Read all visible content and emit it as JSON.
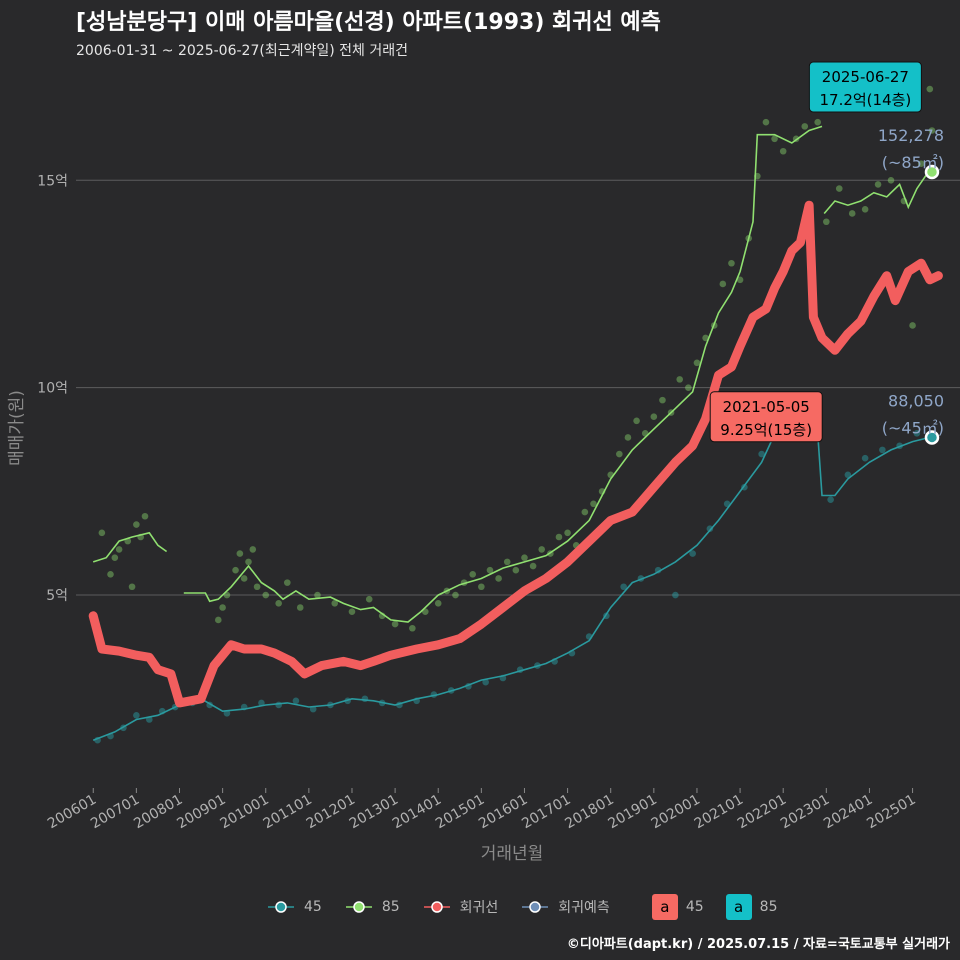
{
  "chart_data": {
    "type": "line",
    "title": "[성남분당구] 이매 아름마을(선경) 아파트(1993) 회귀선 예측",
    "subtitle": "2006-01-31 ~ 2025-06-27(최근계약일) 전체 거래건",
    "xlabel": "거래년월",
    "ylabel": "매매가(원)",
    "x_ticks": [
      "200601",
      "200701",
      "200801",
      "200901",
      "201001",
      "201101",
      "201201",
      "201301",
      "201401",
      "201501",
      "201601",
      "201701",
      "201801",
      "201901",
      "202001",
      "202101",
      "202201",
      "202301",
      "202401",
      "202501"
    ],
    "y_ticks": [
      {
        "value": 5,
        "label": "5억"
      },
      {
        "value": 10,
        "label": "10억"
      },
      {
        "value": 15,
        "label": "15억"
      }
    ],
    "xlim": [
      2005.6,
      2026.1
    ],
    "ylim": [
      0.3,
      17.9
    ],
    "grid": true,
    "legend_position": "bottom",
    "series": [
      {
        "name": "45",
        "color": "#2a9a9f",
        "points": [
          [
            2006.0,
            1.5
          ],
          [
            2006.5,
            1.7
          ],
          [
            2007.0,
            2.0
          ],
          [
            2007.5,
            2.1
          ],
          [
            2008.0,
            2.35
          ],
          [
            2008.5,
            2.5
          ],
          [
            2009.0,
            2.2
          ],
          [
            2009.5,
            2.25
          ],
          [
            2010.0,
            2.35
          ],
          [
            2010.5,
            2.4
          ],
          [
            2011.0,
            2.3
          ],
          [
            2011.5,
            2.35
          ],
          [
            2012.0,
            2.5
          ],
          [
            2012.5,
            2.45
          ],
          [
            2013.0,
            2.35
          ],
          [
            2013.5,
            2.5
          ],
          [
            2014.0,
            2.6
          ],
          [
            2014.5,
            2.75
          ],
          [
            2015.0,
            2.95
          ],
          [
            2015.5,
            3.05
          ],
          [
            2016.0,
            3.2
          ],
          [
            2016.5,
            3.35
          ],
          [
            2017.0,
            3.6
          ],
          [
            2017.5,
            3.9
          ],
          [
            2018.0,
            4.7
          ],
          [
            2018.5,
            5.3
          ],
          [
            2019.0,
            5.5
          ],
          [
            2019.5,
            5.8
          ],
          [
            2020.0,
            6.2
          ],
          [
            2020.5,
            6.8
          ],
          [
            2021.0,
            7.5
          ],
          [
            2021.5,
            8.2
          ],
          [
            2021.9,
            9.1
          ],
          [
            2022.1,
            8.9
          ],
          [
            2022.5,
            8.85
          ],
          [
            2022.8,
            8.9
          ],
          [
            2022.9,
            7.4
          ],
          [
            2023.2,
            7.4
          ],
          [
            2023.5,
            7.8
          ],
          [
            2024.0,
            8.2
          ],
          [
            2024.5,
            8.5
          ],
          [
            2025.0,
            8.7
          ],
          [
            2025.4,
            8.8
          ]
        ]
      },
      {
        "name": "85",
        "color": "#90e070",
        "segments": [
          [
            [
              2006.0,
              5.8
            ],
            [
              2006.3,
              5.9
            ],
            [
              2006.6,
              6.3
            ],
            [
              2006.9,
              6.4
            ],
            [
              2007.3,
              6.5
            ],
            [
              2007.5,
              6.2
            ],
            [
              2007.7,
              6.05
            ]
          ],
          [
            [
              2008.1,
              5.05
            ],
            [
              2008.6,
              5.05
            ],
            [
              2008.7,
              4.85
            ],
            [
              2008.9,
              4.9
            ],
            [
              2009.2,
              5.2
            ],
            [
              2009.6,
              5.7
            ],
            [
              2009.9,
              5.3
            ],
            [
              2010.2,
              5.1
            ],
            [
              2010.4,
              4.9
            ],
            [
              2010.7,
              5.1
            ],
            [
              2011.0,
              4.9
            ],
            [
              2011.5,
              4.95
            ],
            [
              2011.8,
              4.8
            ],
            [
              2012.2,
              4.65
            ],
            [
              2012.5,
              4.7
            ],
            [
              2012.9,
              4.4
            ],
            [
              2013.3,
              4.35
            ],
            [
              2013.6,
              4.6
            ],
            [
              2014.0,
              5.0
            ],
            [
              2014.5,
              5.25
            ],
            [
              2015.0,
              5.4
            ],
            [
              2015.5,
              5.65
            ],
            [
              2016.0,
              5.8
            ],
            [
              2016.5,
              5.95
            ],
            [
              2017.0,
              6.3
            ],
            [
              2017.5,
              6.8
            ],
            [
              2018.0,
              7.8
            ],
            [
              2018.5,
              8.5
            ],
            [
              2019.0,
              9.0
            ],
            [
              2019.5,
              9.5
            ],
            [
              2019.9,
              9.9
            ],
            [
              2020.2,
              11.0
            ],
            [
              2020.5,
              11.8
            ],
            [
              2020.8,
              12.3
            ],
            [
              2021.0,
              12.8
            ],
            [
              2021.3,
              14.0
            ],
            [
              2021.4,
              16.1
            ],
            [
              2021.8,
              16.1
            ],
            [
              2022.2,
              15.9
            ],
            [
              2022.6,
              16.2
            ],
            [
              2022.9,
              16.3
            ]
          ],
          [
            [
              2022.95,
              14.2
            ],
            [
              2023.2,
              14.5
            ],
            [
              2023.5,
              14.4
            ],
            [
              2023.8,
              14.5
            ],
            [
              2024.1,
              14.7
            ],
            [
              2024.4,
              14.6
            ],
            [
              2024.7,
              14.9
            ],
            [
              2024.9,
              14.35
            ],
            [
              2025.1,
              14.8
            ],
            [
              2025.3,
              15.1
            ],
            [
              2025.45,
              15.2
            ]
          ]
        ]
      },
      {
        "name": "회귀선",
        "color": "#f25e5e",
        "points": [
          [
            2006.0,
            4.5
          ],
          [
            2006.2,
            3.7
          ],
          [
            2006.6,
            3.65
          ],
          [
            2007.0,
            3.55
          ],
          [
            2007.3,
            3.5
          ],
          [
            2007.5,
            3.2
          ],
          [
            2007.8,
            3.1
          ],
          [
            2008.0,
            2.4
          ],
          [
            2008.5,
            2.5
          ],
          [
            2008.8,
            3.3
          ],
          [
            2009.2,
            3.8
          ],
          [
            2009.5,
            3.7
          ],
          [
            2009.9,
            3.7
          ],
          [
            2010.2,
            3.6
          ],
          [
            2010.6,
            3.4
          ],
          [
            2010.9,
            3.1
          ],
          [
            2011.3,
            3.3
          ],
          [
            2011.8,
            3.4
          ],
          [
            2012.2,
            3.3
          ],
          [
            2012.5,
            3.4
          ],
          [
            2012.9,
            3.55
          ],
          [
            2013.5,
            3.7
          ],
          [
            2014.0,
            3.8
          ],
          [
            2014.5,
            3.95
          ],
          [
            2015.0,
            4.3
          ],
          [
            2015.5,
            4.7
          ],
          [
            2016.0,
            5.1
          ],
          [
            2016.5,
            5.4
          ],
          [
            2017.0,
            5.8
          ],
          [
            2017.5,
            6.3
          ],
          [
            2018.0,
            6.8
          ],
          [
            2018.5,
            7.0
          ],
          [
            2019.0,
            7.6
          ],
          [
            2019.5,
            8.2
          ],
          [
            2019.9,
            8.6
          ],
          [
            2020.2,
            9.25
          ],
          [
            2020.5,
            10.3
          ],
          [
            2020.8,
            10.5
          ],
          [
            2021.0,
            11.0
          ],
          [
            2021.3,
            11.7
          ],
          [
            2021.6,
            11.9
          ],
          [
            2021.8,
            12.4
          ],
          [
            2022.0,
            12.8
          ],
          [
            2022.2,
            13.3
          ],
          [
            2022.4,
            13.5
          ],
          [
            2022.6,
            14.4
          ],
          [
            2022.7,
            11.7
          ],
          [
            2022.9,
            11.2
          ],
          [
            2023.2,
            10.9
          ],
          [
            2023.5,
            11.3
          ],
          [
            2023.8,
            11.6
          ],
          [
            2024.1,
            12.2
          ],
          [
            2024.4,
            12.7
          ],
          [
            2024.6,
            12.1
          ],
          [
            2024.9,
            12.8
          ],
          [
            2025.2,
            13.0
          ],
          [
            2025.4,
            12.6
          ],
          [
            2025.6,
            12.7
          ]
        ]
      }
    ],
    "scatter_85": [
      [
        2006.2,
        6.5
      ],
      [
        2006.4,
        5.5
      ],
      [
        2006.6,
        6.1
      ],
      [
        2006.8,
        6.3
      ],
      [
        2007.0,
        6.7
      ],
      [
        2007.1,
        6.4
      ],
      [
        2007.2,
        6.9
      ],
      [
        2006.5,
        5.9
      ],
      [
        2006.9,
        5.2
      ],
      [
        2008.9,
        4.4
      ],
      [
        2009.0,
        4.7
      ],
      [
        2009.1,
        5.0
      ],
      [
        2009.3,
        5.6
      ],
      [
        2009.4,
        6.0
      ],
      [
        2009.5,
        5.4
      ],
      [
        2009.6,
        5.8
      ],
      [
        2009.7,
        6.1
      ],
      [
        2009.8,
        5.2
      ],
      [
        2010.0,
        5.0
      ],
      [
        2010.3,
        4.8
      ],
      [
        2010.5,
        5.3
      ],
      [
        2010.8,
        4.7
      ],
      [
        2011.2,
        5.0
      ],
      [
        2011.6,
        4.8
      ],
      [
        2012.0,
        4.6
      ],
      [
        2012.4,
        4.9
      ],
      [
        2012.7,
        4.5
      ],
      [
        2013.0,
        4.3
      ],
      [
        2013.4,
        4.2
      ],
      [
        2013.7,
        4.6
      ],
      [
        2014.0,
        4.8
      ],
      [
        2014.2,
        5.1
      ],
      [
        2014.4,
        5.0
      ],
      [
        2014.6,
        5.3
      ],
      [
        2014.8,
        5.5
      ],
      [
        2015.0,
        5.2
      ],
      [
        2015.2,
        5.6
      ],
      [
        2015.4,
        5.4
      ],
      [
        2015.6,
        5.8
      ],
      [
        2015.8,
        5.6
      ],
      [
        2016.0,
        5.9
      ],
      [
        2016.2,
        5.7
      ],
      [
        2016.4,
        6.1
      ],
      [
        2016.6,
        6.0
      ],
      [
        2016.8,
        6.4
      ],
      [
        2017.0,
        6.5
      ],
      [
        2017.2,
        6.2
      ],
      [
        2017.4,
        7.0
      ],
      [
        2017.6,
        7.2
      ],
      [
        2017.8,
        7.5
      ],
      [
        2018.0,
        7.9
      ],
      [
        2018.2,
        8.4
      ],
      [
        2018.4,
        8.8
      ],
      [
        2018.6,
        9.2
      ],
      [
        2018.8,
        8.9
      ],
      [
        2019.0,
        9.3
      ],
      [
        2019.2,
        9.7
      ],
      [
        2019.4,
        9.4
      ],
      [
        2019.6,
        10.2
      ],
      [
        2019.8,
        10.0
      ],
      [
        2020.0,
        10.6
      ],
      [
        2020.2,
        11.2
      ],
      [
        2020.4,
        11.5
      ],
      [
        2020.6,
        12.5
      ],
      [
        2020.8,
        13.0
      ],
      [
        2021.0,
        12.6
      ],
      [
        2021.2,
        13.6
      ],
      [
        2021.4,
        15.1
      ],
      [
        2021.6,
        16.4
      ],
      [
        2021.8,
        16.0
      ],
      [
        2022.0,
        15.7
      ],
      [
        2022.3,
        16.0
      ],
      [
        2022.5,
        16.3
      ],
      [
        2022.8,
        16.4
      ],
      [
        2023.0,
        14.0
      ],
      [
        2023.3,
        14.8
      ],
      [
        2023.6,
        14.2
      ],
      [
        2023.9,
        14.3
      ],
      [
        2024.2,
        14.9
      ],
      [
        2024.5,
        15.0
      ],
      [
        2024.8,
        14.5
      ],
      [
        2025.0,
        11.5
      ],
      [
        2025.2,
        15.4
      ],
      [
        2025.4,
        17.2
      ],
      [
        2025.45,
        16.2
      ]
    ],
    "scatter_45": [
      [
        2006.1,
        1.5
      ],
      [
        2006.4,
        1.6
      ],
      [
        2006.7,
        1.8
      ],
      [
        2007.0,
        2.1
      ],
      [
        2007.3,
        2.0
      ],
      [
        2007.6,
        2.2
      ],
      [
        2007.9,
        2.3
      ],
      [
        2008.3,
        2.4
      ],
      [
        2008.7,
        2.35
      ],
      [
        2009.1,
        2.15
      ],
      [
        2009.5,
        2.3
      ],
      [
        2009.9,
        2.4
      ],
      [
        2010.3,
        2.35
      ],
      [
        2010.7,
        2.45
      ],
      [
        2011.1,
        2.25
      ],
      [
        2011.5,
        2.35
      ],
      [
        2011.9,
        2.45
      ],
      [
        2012.3,
        2.5
      ],
      [
        2012.7,
        2.4
      ],
      [
        2013.1,
        2.35
      ],
      [
        2013.5,
        2.45
      ],
      [
        2013.9,
        2.6
      ],
      [
        2014.3,
        2.7
      ],
      [
        2014.7,
        2.8
      ],
      [
        2015.1,
        2.9
      ],
      [
        2015.5,
        3.0
      ],
      [
        2015.9,
        3.2
      ],
      [
        2016.3,
        3.3
      ],
      [
        2016.7,
        3.4
      ],
      [
        2017.1,
        3.6
      ],
      [
        2017.5,
        4.0
      ],
      [
        2017.9,
        4.5
      ],
      [
        2018.3,
        5.2
      ],
      [
        2018.7,
        5.4
      ],
      [
        2019.1,
        5.6
      ],
      [
        2019.5,
        5.0
      ],
      [
        2019.9,
        6.0
      ],
      [
        2020.3,
        6.6
      ],
      [
        2020.7,
        7.2
      ],
      [
        2021.1,
        7.6
      ],
      [
        2021.5,
        8.4
      ],
      [
        2021.9,
        9.0
      ],
      [
        2022.3,
        8.8
      ],
      [
        2022.7,
        8.9
      ],
      [
        2023.1,
        7.3
      ],
      [
        2023.5,
        7.9
      ],
      [
        2023.9,
        8.3
      ],
      [
        2024.3,
        8.5
      ],
      [
        2024.7,
        8.6
      ],
      [
        2025.1,
        8.9
      ]
    ],
    "annotations": [
      {
        "date": "2021-05-05",
        "label": "9.25억(15층)",
        "x": 2020.4,
        "y": 9.25,
        "color": "#f66a63"
      },
      {
        "date": "2025-06-27",
        "label": "17.2억(14층)",
        "x": 2022.7,
        "y": 17.2,
        "color": "#14c0c8"
      }
    ],
    "end_labels": [
      {
        "value": "152,278",
        "unit": "(~85㎡)",
        "x": 2025.45,
        "y": 15.2,
        "color": "#90e070"
      },
      {
        "value": "88,050",
        "unit": "(~45㎡)",
        "x": 2025.45,
        "y": 8.8,
        "color": "#2a9a9f"
      }
    ],
    "legend": [
      {
        "label": "45",
        "color": "#2a9a9f"
      },
      {
        "label": "85",
        "color": "#90e070"
      },
      {
        "label": "회귀선",
        "color": "#f25e5e"
      },
      {
        "label": "회귀예측",
        "color": "#6f8fb8"
      }
    ],
    "legend_boxes": [
      {
        "text": "a",
        "label": "45",
        "color": "#f66a63"
      },
      {
        "text": "a",
        "label": "85",
        "color": "#14c0c8"
      }
    ]
  },
  "caption": "©디아파트(dapt.kr) / 2025.07.15 / 자료=국토교통부 실거래가"
}
